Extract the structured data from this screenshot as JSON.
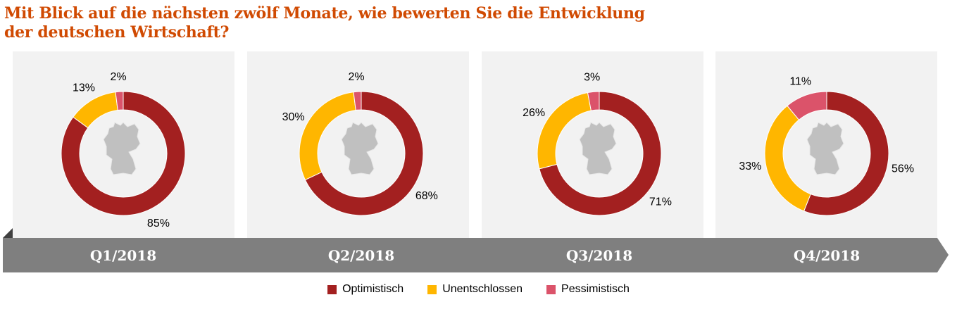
{
  "title_lines": [
    "Mit Blick auf die nächsten zwölf Monate, wie bewerten Sie die Entwicklung",
    "der deutschen Wirtschaft?"
  ],
  "chart_data": {
    "type": "pie",
    "donut": true,
    "categories": [
      "Optimistisch",
      "Unentschlossen",
      "Pessimistisch"
    ],
    "colors": [
      "#a32020",
      "#ffb600",
      "#db536a"
    ],
    "legend_position": "bottom",
    "charts": [
      {
        "label": "Q1/2018",
        "values": [
          85,
          13,
          2
        ],
        "labels": [
          "85%",
          "13%",
          "2%"
        ]
      },
      {
        "label": "Q2/2018",
        "values": [
          68,
          30,
          2
        ],
        "labels": [
          "68%",
          "30%",
          "2%"
        ]
      },
      {
        "label": "Q3/2018",
        "values": [
          71,
          26,
          3
        ],
        "labels": [
          "71%",
          "26%",
          "3%"
        ]
      },
      {
        "label": "Q4/2018",
        "values": [
          56,
          33,
          11
        ],
        "labels": [
          "56%",
          "33%",
          "11%"
        ]
      }
    ]
  }
}
